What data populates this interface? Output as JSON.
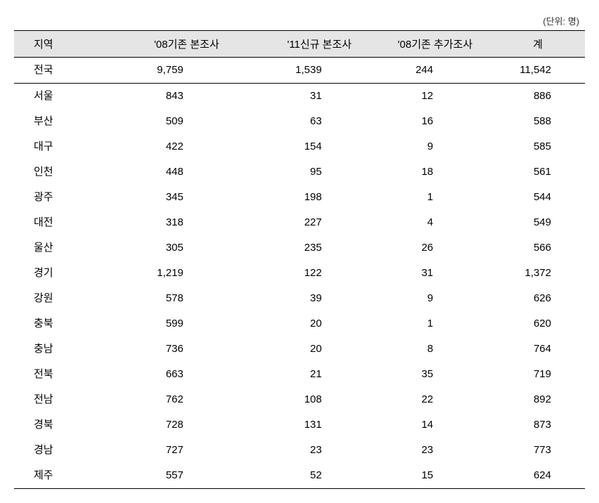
{
  "unit_label": "(단위: 명)",
  "table": {
    "type": "table",
    "background_color": "#ffffff",
    "header_bg": "#e5e5e5",
    "border_color": "#000000",
    "font_family": "Malgun Gothic",
    "font_size": 15,
    "columns": [
      {
        "label": "지역",
        "align": "left"
      },
      {
        "label": "'08기존 본조사",
        "align": "right"
      },
      {
        "label": "'11신규 본조사",
        "align": "right"
      },
      {
        "label": "'08기존 추가조사",
        "align": "right"
      },
      {
        "label": "계",
        "align": "right"
      }
    ],
    "total_row": {
      "region": "전국",
      "c1": "9,759",
      "c2": "1,539",
      "c3": "244",
      "c4": "11,542"
    },
    "rows": [
      {
        "region": "서울",
        "c1": "843",
        "c2": "31",
        "c3": "12",
        "c4": "886"
      },
      {
        "region": "부산",
        "c1": "509",
        "c2": "63",
        "c3": "16",
        "c4": "588"
      },
      {
        "region": "대구",
        "c1": "422",
        "c2": "154",
        "c3": "9",
        "c4": "585"
      },
      {
        "region": "인천",
        "c1": "448",
        "c2": "95",
        "c3": "18",
        "c4": "561"
      },
      {
        "region": "광주",
        "c1": "345",
        "c2": "198",
        "c3": "1",
        "c4": "544"
      },
      {
        "region": "대전",
        "c1": "318",
        "c2": "227",
        "c3": "4",
        "c4": "549"
      },
      {
        "region": "울산",
        "c1": "305",
        "c2": "235",
        "c3": "26",
        "c4": "566"
      },
      {
        "region": "경기",
        "c1": "1,219",
        "c2": "122",
        "c3": "31",
        "c4": "1,372"
      },
      {
        "region": "강원",
        "c1": "578",
        "c2": "39",
        "c3": "9",
        "c4": "626"
      },
      {
        "region": "충북",
        "c1": "599",
        "c2": "20",
        "c3": "1",
        "c4": "620"
      },
      {
        "region": "충남",
        "c1": "736",
        "c2": "20",
        "c3": "8",
        "c4": "764"
      },
      {
        "region": "전북",
        "c1": "663",
        "c2": "21",
        "c3": "35",
        "c4": "719"
      },
      {
        "region": "전남",
        "c1": "762",
        "c2": "108",
        "c3": "22",
        "c4": "892"
      },
      {
        "region": "경북",
        "c1": "728",
        "c2": "131",
        "c3": "14",
        "c4": "873"
      },
      {
        "region": "경남",
        "c1": "727",
        "c2": "23",
        "c3": "23",
        "c4": "773"
      },
      {
        "region": "제주",
        "c1": "557",
        "c2": "52",
        "c3": "15",
        "c4": "624"
      }
    ]
  }
}
